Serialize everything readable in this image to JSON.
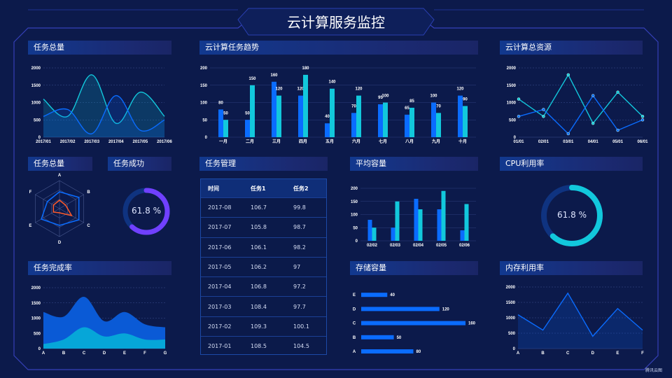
{
  "header": {
    "title": "云计算服务监控"
  },
  "panels": {
    "total_tasks": "任务总量",
    "trend": "云计算任务趋势",
    "resources": "云计算总资源",
    "total_tasks_radar": "任务总量",
    "task_success": "任务成功",
    "task_management": "任务管理",
    "avg_capacity": "平均容量",
    "cpu": "CPU利用率",
    "completion": "任务完成率",
    "storage": "存储容量",
    "memory": "内存利用率"
  },
  "table": {
    "headers": [
      "时间",
      "任务1",
      "任务2"
    ],
    "rows": [
      [
        "2017-08",
        "106.7",
        "99.8"
      ],
      [
        "2017-07",
        "105.8",
        "98.7"
      ],
      [
        "2017-06",
        "106.1",
        "98.2"
      ],
      [
        "2017-05",
        "106.2",
        "97"
      ],
      [
        "2017-04",
        "106.8",
        "97.2"
      ],
      [
        "2017-03",
        "108.4",
        "97.7"
      ],
      [
        "2017-02",
        "109.3",
        "100.1"
      ],
      [
        "2017-01",
        "108.5",
        "104.5"
      ]
    ]
  },
  "watermark": "腾讯云图",
  "colors": {
    "blue": "#0a6cff",
    "cyan": "#12c8dc",
    "purple": "#7040ff",
    "orange": "#ff5a2a"
  },
  "chart_data": [
    {
      "id": "total_tasks",
      "type": "line",
      "smooth": true,
      "area": true,
      "x": [
        "2017/01",
        "2017/02",
        "2017/03",
        "2017/04",
        "2017/05",
        "2017/06"
      ],
      "ylim": [
        0,
        2000
      ],
      "yticks": [
        0,
        500,
        1000,
        1500,
        2000
      ],
      "series": [
        {
          "values": [
            1100,
            600,
            1800,
            400,
            1300,
            600
          ],
          "color": "#12c8dc"
        },
        {
          "values": [
            600,
            800,
            100,
            1200,
            200,
            500
          ],
          "color": "#0a6cff"
        }
      ]
    },
    {
      "id": "trend",
      "type": "bar",
      "categories": [
        "一月",
        "二月",
        "三月",
        "四月",
        "五月",
        "六月",
        "七月",
        "八月",
        "九月",
        "十月"
      ],
      "ylim": [
        0,
        200
      ],
      "yticks": [
        0,
        50,
        100,
        150,
        200
      ],
      "series": [
        {
          "values": [
            80,
            50,
            160,
            120,
            40,
            70,
            95,
            65,
            100,
            120
          ],
          "color": "#0a6cff"
        },
        {
          "values": [
            50,
            150,
            120,
            180,
            140,
            120,
            100,
            85,
            70,
            90
          ],
          "color": "#12c8dc"
        }
      ],
      "data_labels": true
    },
    {
      "id": "resources",
      "type": "line",
      "markers": true,
      "x": [
        "01/01",
        "02/01",
        "03/01",
        "04/01",
        "05/01",
        "06/01"
      ],
      "ylim": [
        0,
        2000
      ],
      "yticks": [
        0,
        500,
        1000,
        1500,
        2000
      ],
      "series": [
        {
          "values": [
            1100,
            600,
            1800,
            400,
            1300,
            600
          ],
          "color": "#12c8dc"
        },
        {
          "values": [
            600,
            800,
            100,
            1200,
            200,
            500
          ],
          "color": "#0a6cff"
        }
      ]
    },
    {
      "id": "radar",
      "type": "radar",
      "indicators": [
        "A",
        "B",
        "C",
        "D",
        "E",
        "F"
      ],
      "max": 100,
      "series": [
        {
          "values": [
            60,
            80,
            80,
            60,
            75,
            50
          ],
          "color": "#0a6cff"
        },
        {
          "values": [
            30,
            25,
            50,
            15,
            25,
            25
          ],
          "color": "#ff5a2a"
        }
      ]
    },
    {
      "id": "task_success",
      "type": "pie",
      "value": 61.8,
      "label": "61.8 %",
      "color": "#7040ff"
    },
    {
      "id": "avg_capacity",
      "type": "bar",
      "categories": [
        "02/02",
        "02/03",
        "02/04",
        "02/05",
        "02/06"
      ],
      "ylim": [
        0,
        200
      ],
      "yticks": [
        0,
        50,
        100,
        150,
        200
      ],
      "series": [
        {
          "values": [
            80,
            50,
            160,
            120,
            40
          ],
          "color": "#0a6cff"
        },
        {
          "values": [
            50,
            150,
            120,
            190,
            140
          ],
          "color": "#12c8dc"
        }
      ]
    },
    {
      "id": "cpu",
      "type": "pie",
      "value": 61.8,
      "label": "61.8 %",
      "color": "#12c8dc"
    },
    {
      "id": "completion",
      "type": "area",
      "stacked": true,
      "smooth": true,
      "x": [
        "A",
        "B",
        "C",
        "D",
        "E",
        "F",
        "G"
      ],
      "ylim": [
        0,
        2000
      ],
      "yticks": [
        0,
        500,
        1000,
        1500,
        2000
      ],
      "series": [
        {
          "values": [
            150,
            300,
            700,
            400,
            500,
            300,
            300
          ],
          "color": "#06a6d8"
        },
        {
          "values": [
            1050,
            750,
            1000,
            500,
            700,
            500,
            400
          ],
          "color": "#0a5ad6"
        }
      ]
    },
    {
      "id": "storage",
      "type": "hbar",
      "categories": [
        "A",
        "B",
        "C",
        "D",
        "E"
      ],
      "values": [
        80,
        50,
        160,
        120,
        40
      ],
      "color": "#0a6cff",
      "data_labels": true
    },
    {
      "id": "memory",
      "type": "line",
      "area": true,
      "x": [
        "A",
        "B",
        "C",
        "D",
        "E",
        "F"
      ],
      "ylim": [
        0,
        2000
      ],
      "yticks": [
        0,
        500,
        1000,
        1500,
        2000
      ],
      "series": [
        {
          "values": [
            1100,
            600,
            1800,
            400,
            1300,
            600
          ],
          "color": "#0a6cff"
        }
      ]
    }
  ]
}
